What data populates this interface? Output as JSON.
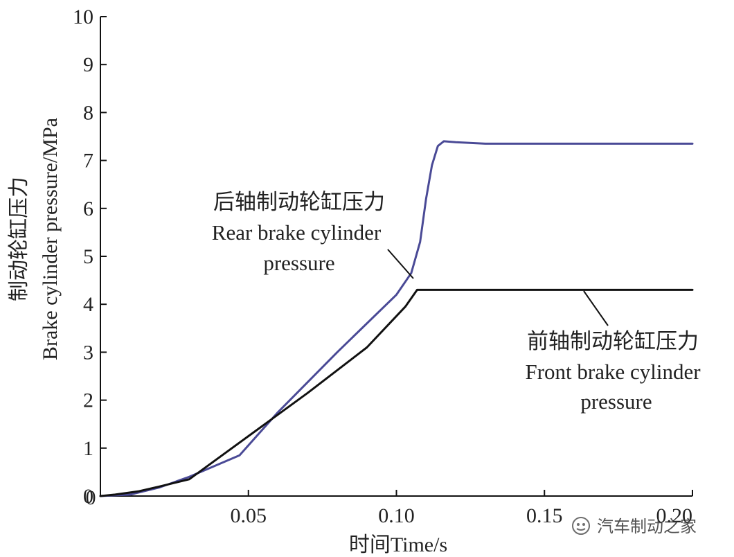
{
  "chart_data": {
    "type": "line",
    "xlabel": "时间Time/s",
    "ylabel_cn": "制动轮缸压力",
    "ylabel_en": "Brake cylinder pressure/MPa",
    "xlim": [
      0,
      0.2
    ],
    "ylim": [
      0,
      10
    ],
    "x_ticks": [
      0,
      0.05,
      0.1,
      0.15,
      0.2
    ],
    "x_tick_labels": [
      "0",
      "0.05",
      "0.10",
      "0.15",
      "0.20"
    ],
    "y_ticks": [
      0,
      1,
      2,
      3,
      4,
      5,
      6,
      7,
      8,
      9,
      10
    ],
    "y_tick_labels": [
      "0",
      "1",
      "2",
      "3",
      "4",
      "5",
      "6",
      "7",
      "8",
      "9",
      "10"
    ],
    "grid": false,
    "series": [
      {
        "name": "后轴制动轮缸压力 Rear brake cylinder pressure",
        "color": "#4a4a96",
        "x": [
          0,
          0.01,
          0.02,
          0.03,
          0.047,
          0.06,
          0.08,
          0.1,
          0.105,
          0.108,
          0.11,
          0.112,
          0.114,
          0.116,
          0.12,
          0.13,
          0.15,
          0.2
        ],
        "y": [
          0,
          0.03,
          0.18,
          0.4,
          0.85,
          1.75,
          3.0,
          4.2,
          4.65,
          5.3,
          6.2,
          6.9,
          7.3,
          7.4,
          7.38,
          7.35,
          7.35,
          7.35
        ]
      },
      {
        "name": "前轴制动轮缸压力 Front brake cylinder pressure",
        "color": "#111111",
        "x": [
          0,
          0.005,
          0.013,
          0.02,
          0.03,
          0.05,
          0.07,
          0.09,
          0.103,
          0.107,
          0.11,
          0.13,
          0.16,
          0.2
        ],
        "y": [
          0,
          0.03,
          0.1,
          0.2,
          0.35,
          1.25,
          2.15,
          3.1,
          3.95,
          4.3,
          4.3,
          4.3,
          4.3,
          4.3
        ]
      }
    ],
    "annotations": {
      "rear_cn": "后轴制动轮缸压力",
      "rear_en1": "Rear brake cylinder",
      "rear_en2": "pressure",
      "front_cn": "前轴制动轮缸压力",
      "front_en1": "Front brake cylinder",
      "front_en2": "pressure"
    }
  },
  "watermark": {
    "icon": "wechat-official-account-icon",
    "text": "汽车制动之家"
  }
}
